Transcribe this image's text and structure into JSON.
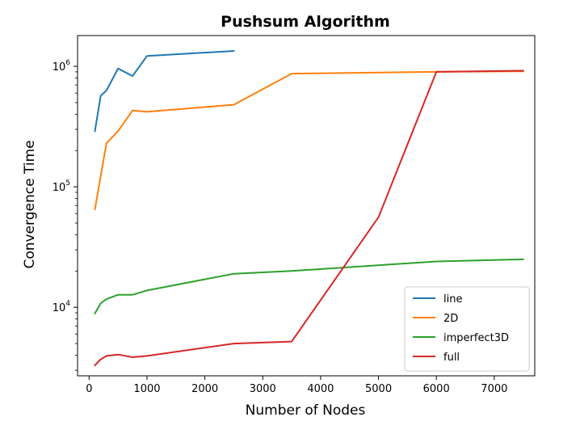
{
  "chart_data": {
    "type": "line",
    "title": "Pushsum Algorithm",
    "xlabel": "Number of Nodes",
    "ylabel": "Convergence Time",
    "yscale": "log",
    "xlim": [
      -200,
      7700
    ],
    "ylim": [
      2700,
      1800000
    ],
    "xticks": [
      0,
      1000,
      2000,
      3000,
      4000,
      5000,
      6000,
      7000
    ],
    "yticks": [
      {
        "value": 10000,
        "base": "10",
        "exp": "4"
      },
      {
        "value": 100000,
        "base": "10",
        "exp": "5"
      },
      {
        "value": 1000000,
        "base": "10",
        "exp": "6"
      }
    ],
    "grid": false,
    "legend_position": "lower-right",
    "series": [
      {
        "name": "line",
        "color": "#1f77b4",
        "x": [
          100,
          200,
          300,
          500,
          750,
          1000,
          2500
        ],
        "y": [
          290000,
          570000,
          630000,
          960000,
          830000,
          1220000,
          1340000
        ]
      },
      {
        "name": "2D",
        "color": "#ff7f0e",
        "x": [
          100,
          300,
          500,
          750,
          1000,
          2500,
          3500,
          6000,
          7500
        ],
        "y": [
          65000,
          230000,
          290000,
          430000,
          420000,
          480000,
          870000,
          900000,
          910000
        ]
      },
      {
        "name": "imperfect3D",
        "color": "#2ca02c",
        "x": [
          100,
          200,
          300,
          500,
          750,
          1000,
          2500,
          3500,
          6000,
          7500
        ],
        "y": [
          8900,
          10800,
          11700,
          12700,
          12700,
          13800,
          19000,
          20000,
          24000,
          25000
        ]
      },
      {
        "name": "full",
        "color": "#d62728",
        "x": [
          100,
          200,
          300,
          500,
          750,
          1000,
          2500,
          3500,
          5000,
          6000,
          7500
        ],
        "y": [
          3300,
          3700,
          3950,
          4050,
          3850,
          3950,
          5000,
          5200,
          56000,
          900000,
          920000
        ]
      }
    ]
  }
}
